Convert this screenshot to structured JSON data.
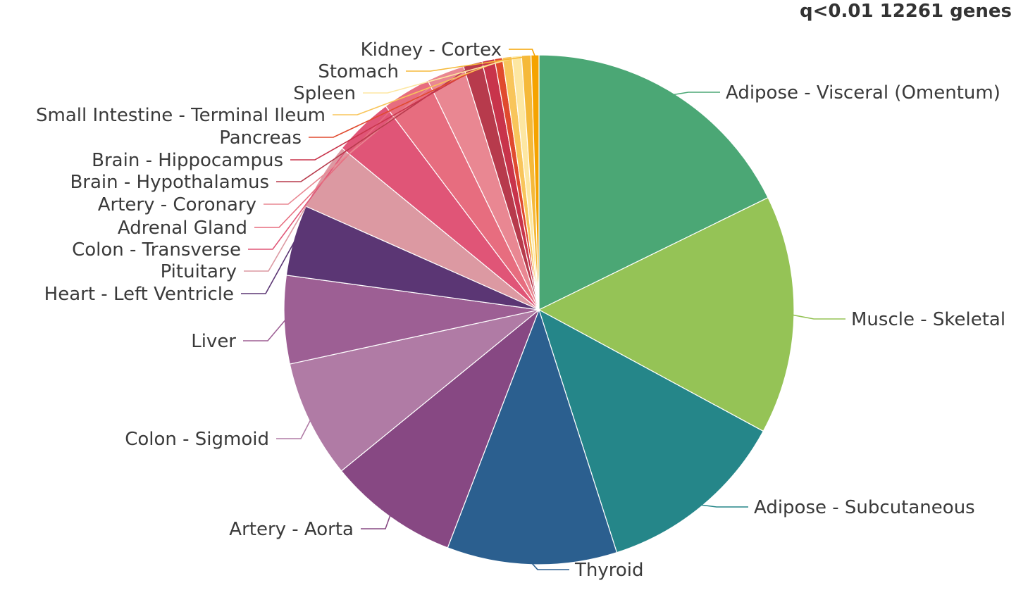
{
  "chart_data": {
    "type": "pie",
    "title": "q<0.01 12261 genes",
    "legend": "none (slice labels with leader lines)",
    "slices": [
      {
        "label": "Adipose - Visceral (Omentum)",
        "value": 17.8,
        "color": "#4ba775"
      },
      {
        "label": "Muscle - Skeletal",
        "value": 15.2,
        "color": "#95c356"
      },
      {
        "label": "Adipose - Subcutaneous",
        "value": 12.2,
        "color": "#258689"
      },
      {
        "label": "Thyroid",
        "value": 10.8,
        "color": "#2b5f8f"
      },
      {
        "label": "Artery - Aorta",
        "value": 8.3,
        "color": "#874883"
      },
      {
        "label": "Colon - Sigmoid",
        "value": 7.5,
        "color": "#b07ba5"
      },
      {
        "label": "Liver",
        "value": 5.6,
        "color": "#9d5f94"
      },
      {
        "label": "Heart - Left Ventricle",
        "value": 4.5,
        "color": "#5b3674"
      },
      {
        "label": "Pituitary",
        "value": 4.3,
        "color": "#dc99a2"
      },
      {
        "label": "Colon - Transverse",
        "value": 3.8,
        "color": "#e05577"
      },
      {
        "label": "Adrenal Gland",
        "value": 3.1,
        "color": "#e76d7f"
      },
      {
        "label": "Artery - Coronary",
        "value": 2.4,
        "color": "#e98792"
      },
      {
        "label": "Brain - Hypothalamus",
        "value": 1.2,
        "color": "#b73a4c"
      },
      {
        "label": "Brain - Hippocampus",
        "value": 0.8,
        "color": "#c8344b"
      },
      {
        "label": "Pancreas",
        "value": 0.5,
        "color": "#e04a2e"
      },
      {
        "label": "Small Intestine - Terminal Ileum",
        "value": 0.6,
        "color": "#f8c55b"
      },
      {
        "label": "Spleen",
        "value": 0.6,
        "color": "#fde7a2"
      },
      {
        "label": "Stomach",
        "value": 0.6,
        "color": "#f5b93a"
      },
      {
        "label": "Kidney - Cortex",
        "value": 0.5,
        "color": "#f5a300"
      }
    ]
  }
}
